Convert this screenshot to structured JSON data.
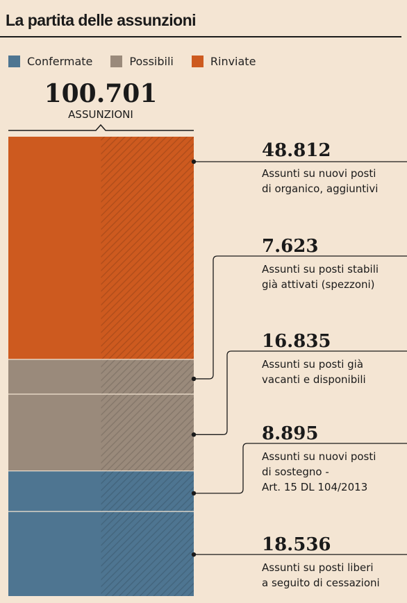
{
  "title": "La partita delle assunzioni",
  "legend": [
    {
      "label": "Confermate",
      "color": "#4e7591"
    },
    {
      "label": "Possibili",
      "color": "#9a8a7b"
    },
    {
      "label": "Rinviate",
      "color": "#cd5a1f"
    }
  ],
  "total": {
    "value": "100.701",
    "label": "ASSUNZIONI"
  },
  "chart_data": {
    "type": "bar",
    "stacked": true,
    "total": 100701,
    "segments": [
      {
        "value": 48812,
        "value_label": "48.812",
        "status": "Rinviate",
        "color": "#cd5a1f",
        "description": [
          "Assunti su nuovi posti",
          "di organico, aggiuntivi"
        ]
      },
      {
        "value": 7623,
        "value_label": "7.623",
        "status": "Possibili",
        "color": "#9a8a7b",
        "description": [
          "Assunti su posti stabili",
          "già attivati (spezzoni)"
        ]
      },
      {
        "value": 16835,
        "value_label": "16.835",
        "status": "Possibili",
        "color": "#9a8a7b",
        "description": [
          "Assunti su posti già",
          "vacanti e disponibili"
        ]
      },
      {
        "value": 8895,
        "value_label": "8.895",
        "status": "Confermate",
        "color": "#4e7591",
        "description": [
          "Assunti su nuovi posti",
          "di sostegno -",
          "Art. 15 DL 104/2013"
        ]
      },
      {
        "value": 18536,
        "value_label": "18.536",
        "status": "Confermate",
        "color": "#4e7591",
        "description": [
          "Assunti su posti liberi",
          "a seguito di cessazioni"
        ]
      }
    ]
  }
}
